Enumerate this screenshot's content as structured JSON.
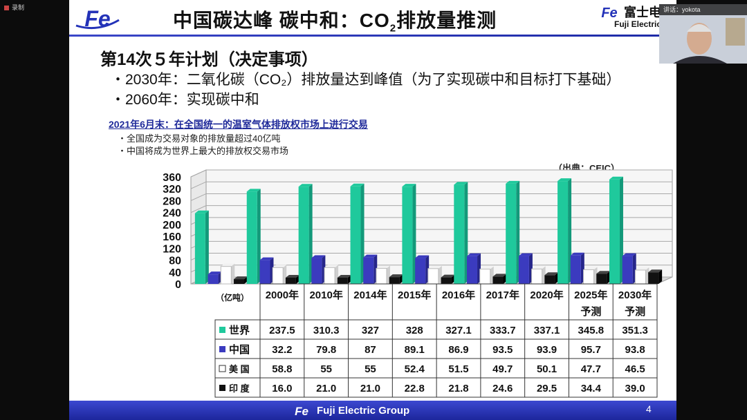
{
  "window": {
    "recording_label": "录制"
  },
  "slide": {
    "title_main": "中国碳达峰 碳中和：CO",
    "title_sub": "2",
    "title_tail": "排放量推测",
    "brand_jp": "富士电",
    "brand_en": "Fuji Electric",
    "heading": "第14次５年计划（决定事项）",
    "bullet1": "・2030年：二氧化碳（CO₂）排放量达到峰值（为了实现碳中和目标打下基础）",
    "bullet2": "・2060年：实现碳中和",
    "subheading": "2021年6月末：在全国统一的温室气体排放权市场上进行交易",
    "subbullet1": "・全国成为交易对象的排放量超过40亿吨",
    "subbullet2": "・中国将成为世界上最大的排放权交易市场",
    "source": "（出典：CEIC）",
    "footer_label": "Fuji Electric Group",
    "page_number": "4"
  },
  "video": {
    "name_label": "讲话：yokota"
  },
  "chart_data": {
    "type": "bar",
    "unit_label": "（亿吨）",
    "categories": [
      [
        "2000年"
      ],
      [
        "2010年"
      ],
      [
        "2014年"
      ],
      [
        "2015年"
      ],
      [
        "2016年"
      ],
      [
        "2017年"
      ],
      [
        "2020年"
      ],
      [
        "2025年",
        "予测"
      ],
      [
        "2030年",
        "予测"
      ]
    ],
    "ylim": [
      0,
      360
    ],
    "yticks": [
      0,
      40,
      80,
      120,
      160,
      200,
      240,
      280,
      320,
      360
    ],
    "series": [
      {
        "name": "世界",
        "color": "#1fc99c",
        "values": [
          237.5,
          310.3,
          327,
          328,
          327.1,
          333.7,
          337.1,
          345.8,
          351.3
        ],
        "labels": [
          "237.5",
          "310.3",
          "327",
          "328",
          "327.1",
          "333.7",
          "337.1",
          "345.8",
          "351.3"
        ]
      },
      {
        "name": "中国",
        "color": "#3b3bbf",
        "values": [
          32.2,
          79.8,
          87,
          89.1,
          86.9,
          93.5,
          93.9,
          95.7,
          93.8
        ],
        "labels": [
          "32.2",
          "79.8",
          "87",
          "89.1",
          "86.9",
          "93.5",
          "93.9",
          "95.7",
          "93.8"
        ]
      },
      {
        "name": "美 国",
        "color": "#ffffff",
        "values": [
          58.8,
          55,
          55,
          52.4,
          51.5,
          49.7,
          50.1,
          47.7,
          46.5
        ],
        "labels": [
          "58.8",
          "55",
          "55",
          "52.4",
          "51.5",
          "49.7",
          "50.1",
          "47.7",
          "46.5"
        ]
      },
      {
        "name": "印 度",
        "color": "#111111",
        "values": [
          16.0,
          21.0,
          21.0,
          22.8,
          21.8,
          24.6,
          29.5,
          34.4,
          39.0
        ],
        "labels": [
          "16.0",
          "21.0",
          "21.0",
          "22.8",
          "21.8",
          "24.6",
          "29.5",
          "34.4",
          "39.0"
        ]
      }
    ]
  }
}
